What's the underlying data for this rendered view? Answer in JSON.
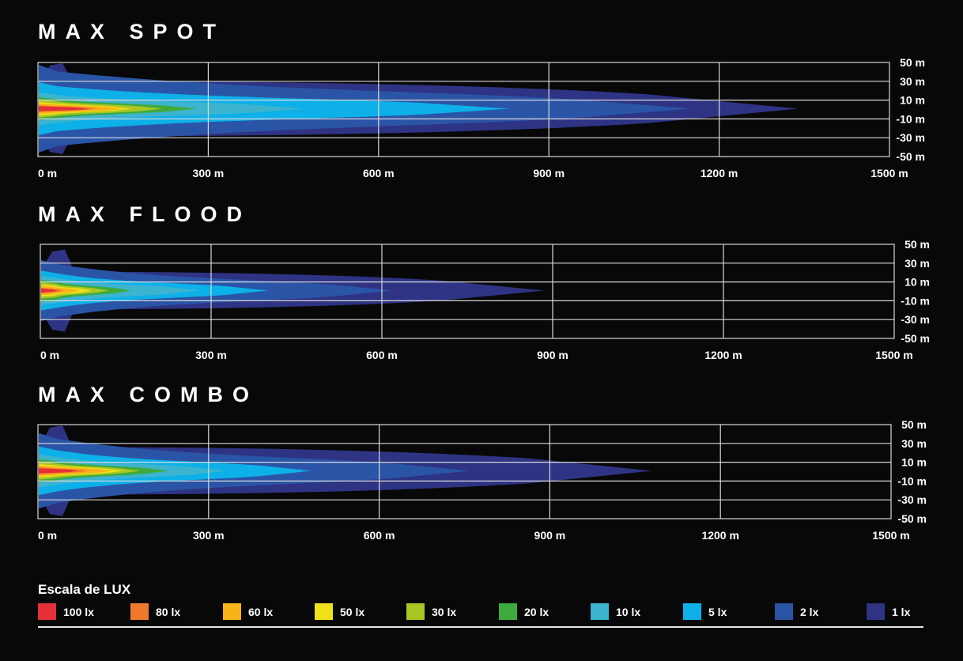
{
  "legend": {
    "title": "Escala de LUX",
    "items": [
      {
        "label": "100 lx",
        "color": "#e5303a"
      },
      {
        "label": "80 lx",
        "color": "#f07a2b"
      },
      {
        "label": "60 lx",
        "color": "#f7b318"
      },
      {
        "label": "50 lx",
        "color": "#efe21a"
      },
      {
        "label": "30 lx",
        "color": "#a8c624"
      },
      {
        "label": "20 lx",
        "color": "#3eaa3e"
      },
      {
        "label": "10 lx",
        "color": "#3cb4cf"
      },
      {
        "label": "5 lx",
        "color": "#0db0e8"
      },
      {
        "label": "2 lx",
        "color": "#2a55a7"
      },
      {
        "label": "1 lx",
        "color": "#2e3383"
      }
    ]
  },
  "chart_data": [
    {
      "type": "heatmap",
      "title": "MAX SPOT",
      "x_tick_labels": [
        "0 m",
        "300 m",
        "600 m",
        "900 m",
        "1200 m",
        "1500 m"
      ],
      "y_tick_labels": [
        "50 m",
        "30 m",
        "10 m",
        "-10 m",
        "-30 m",
        "-50 m"
      ],
      "xlim": [
        0,
        1500
      ],
      "ylim": [
        -50,
        50
      ],
      "grid": true,
      "isolux_reach_m": {
        "100 lx": 90,
        "80 lx": 105,
        "60 lx": 150,
        "50 lx": 165,
        "30 lx": 220,
        "20 lx": 280,
        "10 lx": 470,
        "5 lx": 830,
        "2 lx": 1150,
        "1 lx": 1340
      },
      "isolux_halfwidth_m": {
        "100 lx": 2,
        "80 lx": 2.5,
        "60 lx": 3.5,
        "50 lx": 4,
        "30 lx": 5,
        "20 lx": 6,
        "10 lx": 8,
        "5 lx": 12,
        "2 lx": 20,
        "1 lx": 28
      }
    },
    {
      "type": "heatmap",
      "title": "MAX FLOOD",
      "x_tick_labels": [
        "0 m",
        "300 m",
        "600 m",
        "900 m",
        "1200 m",
        "1500 m"
      ],
      "y_tick_labels": [
        "50 m",
        "30 m",
        "10 m",
        "-10 m",
        "-30 m",
        "-50 m"
      ],
      "xlim": [
        0,
        1500
      ],
      "ylim": [
        -50,
        50
      ],
      "grid": true,
      "isolux_reach_m": {
        "100 lx": 30,
        "80 lx": 40,
        "60 lx": 70,
        "50 lx": 90,
        "30 lx": 120,
        "20 lx": 160,
        "10 lx": 280,
        "5 lx": 400,
        "2 lx": 620,
        "1 lx": 885
      },
      "isolux_halfwidth_m": {
        "100 lx": 1.5,
        "80 lx": 2,
        "60 lx": 3,
        "50 lx": 3.5,
        "30 lx": 4.5,
        "20 lx": 5.5,
        "10 lx": 7,
        "5 lx": 9,
        "2 lx": 13,
        "1 lx": 19
      }
    },
    {
      "type": "heatmap",
      "title": "MAX COMBO",
      "x_tick_labels": [
        "0 m",
        "300 m",
        "600 m",
        "900 m",
        "1200 m",
        "1500 m"
      ],
      "y_tick_labels": [
        "50 m",
        "30 m",
        "10 m",
        "-10 m",
        "-30 m",
        "-50 m"
      ],
      "xlim": [
        0,
        1500
      ],
      "ylim": [
        -50,
        50
      ],
      "grid": true,
      "isolux_reach_m": {
        "100 lx": 70,
        "80 lx": 90,
        "60 lx": 130,
        "50 lx": 150,
        "30 lx": 180,
        "20 lx": 230,
        "10 lx": 330,
        "5 lx": 480,
        "2 lx": 760,
        "1 lx": 1080
      },
      "isolux_halfwidth_m": {
        "100 lx": 2,
        "80 lx": 2.5,
        "60 lx": 3.5,
        "50 lx": 4,
        "30 lx": 5,
        "20 lx": 6,
        "10 lx": 8,
        "5 lx": 11,
        "2 lx": 16,
        "1 lx": 24
      }
    }
  ]
}
